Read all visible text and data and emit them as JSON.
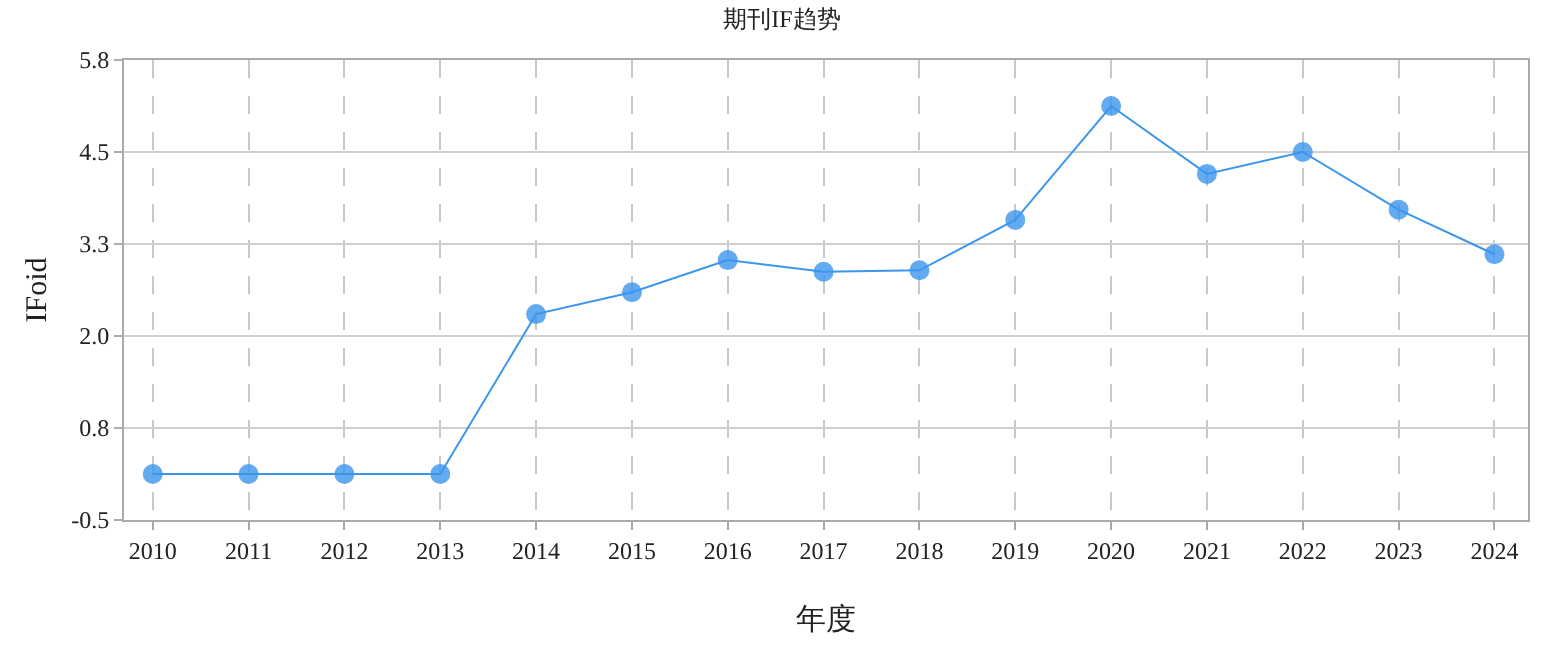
{
  "chart_data": {
    "type": "line",
    "title": "期刊IF趋势",
    "xlabel": "年度",
    "ylabel": "IFoid",
    "categories": [
      "2010",
      "2011",
      "2012",
      "2013",
      "2014",
      "2015",
      "2016",
      "2017",
      "2018",
      "2019",
      "2020",
      "2021",
      "2022",
      "2023",
      "2024"
    ],
    "series": [
      {
        "color": "#3b96ec",
        "values": [
          0.13,
          0.13,
          0.13,
          0.13,
          2.32,
          2.62,
          3.06,
          2.9,
          2.92,
          3.61,
          5.17,
          4.24,
          4.54,
          3.75,
          3.14
        ]
      }
    ],
    "ylim": [
      -0.5,
      5.8
    ],
    "yticks": [
      {
        "value": -0.5,
        "label": "-0.5"
      },
      {
        "value": 0.76,
        "label": "0.8"
      },
      {
        "value": 2.02,
        "label": "2.0"
      },
      {
        "value": 3.28,
        "label": "3.3"
      },
      {
        "value": 4.54,
        "label": "4.5"
      },
      {
        "value": 5.8,
        "label": "5.8"
      }
    ],
    "grid": true,
    "marker": "circle",
    "line_style": "solid"
  }
}
